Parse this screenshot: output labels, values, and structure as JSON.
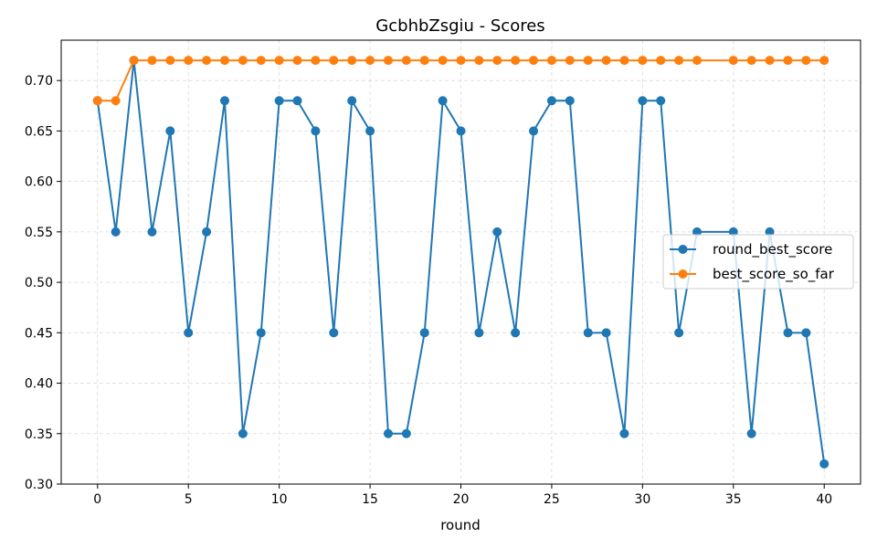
{
  "chart_data": {
    "type": "line",
    "title": "GcbhbZsgiu - Scores",
    "xlabel": "round",
    "ylabel": "",
    "xlim": [
      -2,
      42
    ],
    "ylim": [
      0.3,
      0.74
    ],
    "xticks": [
      0,
      5,
      10,
      15,
      20,
      25,
      30,
      35,
      40
    ],
    "yticks": [
      0.3,
      0.35,
      0.4,
      0.45,
      0.5,
      0.55,
      0.6,
      0.65,
      0.7
    ],
    "grid": true,
    "legend_position": "center-right",
    "series": [
      {
        "name": "round_best_score",
        "color": "#1f77b4",
        "x": [
          0,
          1,
          2,
          3,
          4,
          5,
          6,
          7,
          8,
          9,
          10,
          11,
          12,
          13,
          14,
          15,
          16,
          17,
          18,
          19,
          20,
          21,
          22,
          23,
          24,
          25,
          26,
          27,
          28,
          29,
          30,
          31,
          32,
          33,
          35,
          36,
          37,
          38,
          39,
          40
        ],
        "y": [
          0.68,
          0.55,
          0.72,
          0.55,
          0.65,
          0.45,
          0.55,
          0.68,
          0.35,
          0.45,
          0.68,
          0.68,
          0.65,
          0.45,
          0.68,
          0.65,
          0.35,
          0.35,
          0.45,
          0.68,
          0.65,
          0.45,
          0.55,
          0.45,
          0.65,
          0.68,
          0.68,
          0.45,
          0.45,
          0.35,
          0.68,
          0.68,
          0.45,
          0.55,
          0.55,
          0.35,
          0.55,
          0.45,
          0.45,
          0.32
        ]
      },
      {
        "name": "best_score_so_far",
        "color": "#ff7f0e",
        "x": [
          0,
          1,
          2,
          3,
          4,
          5,
          6,
          7,
          8,
          9,
          10,
          11,
          12,
          13,
          14,
          15,
          16,
          17,
          18,
          19,
          20,
          21,
          22,
          23,
          24,
          25,
          26,
          27,
          28,
          29,
          30,
          31,
          32,
          33,
          35,
          36,
          37,
          38,
          39,
          40
        ],
        "y": [
          0.68,
          0.68,
          0.72,
          0.72,
          0.72,
          0.72,
          0.72,
          0.72,
          0.72,
          0.72,
          0.72,
          0.72,
          0.72,
          0.72,
          0.72,
          0.72,
          0.72,
          0.72,
          0.72,
          0.72,
          0.72,
          0.72,
          0.72,
          0.72,
          0.72,
          0.72,
          0.72,
          0.72,
          0.72,
          0.72,
          0.72,
          0.72,
          0.72,
          0.72,
          0.72,
          0.72,
          0.72,
          0.72,
          0.72,
          0.72
        ]
      }
    ]
  }
}
